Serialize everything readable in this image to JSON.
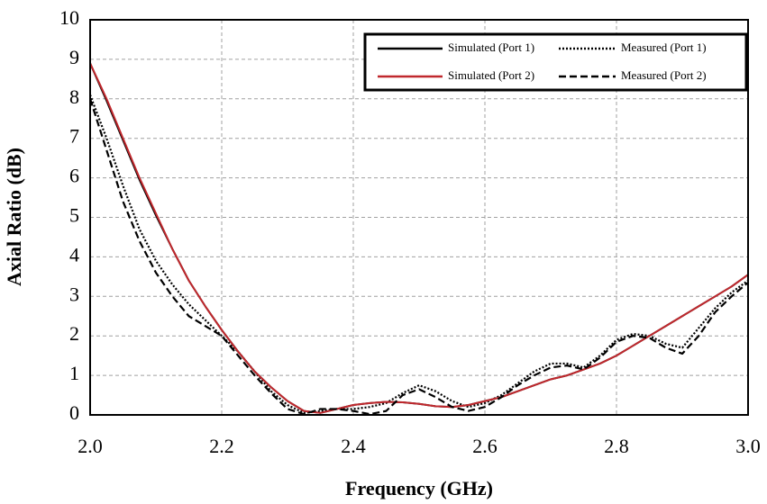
{
  "chart_data": {
    "type": "line",
    "x_label": "Frequency (GHz)",
    "y_label": "Axial Ratio (dB)",
    "x": [
      2.0,
      2.025,
      2.05,
      2.075,
      2.1,
      2.125,
      2.15,
      2.175,
      2.2,
      2.225,
      2.25,
      2.275,
      2.3,
      2.325,
      2.35,
      2.375,
      2.4,
      2.425,
      2.45,
      2.475,
      2.5,
      2.525,
      2.55,
      2.575,
      2.6,
      2.625,
      2.65,
      2.675,
      2.7,
      2.725,
      2.75,
      2.775,
      2.8,
      2.825,
      2.85,
      2.875,
      2.9,
      2.925,
      2.95,
      2.975,
      3.0
    ],
    "series": [
      {
        "name": "Simulated (Port 1)",
        "color": "#000000",
        "linestyle": "solid",
        "values": [
          8.9,
          7.95,
          6.95,
          5.95,
          5.05,
          4.2,
          3.4,
          2.75,
          2.15,
          1.6,
          1.1,
          0.7,
          0.35,
          0.1,
          0.05,
          0.15,
          0.25,
          0.3,
          0.33,
          0.32,
          0.28,
          0.22,
          0.2,
          0.25,
          0.35,
          0.45,
          0.6,
          0.75,
          0.9,
          1.0,
          1.15,
          1.3,
          1.5,
          1.75,
          2.0,
          2.25,
          2.5,
          2.75,
          3.0,
          3.25,
          3.55
        ]
      },
      {
        "name": "Measured (Port 1)",
        "color": "#000000",
        "linestyle": "dotted",
        "values": [
          8.1,
          7.0,
          5.8,
          4.7,
          3.9,
          3.3,
          2.8,
          2.4,
          2.0,
          1.6,
          1.1,
          0.6,
          0.25,
          0.05,
          0.1,
          0.15,
          0.15,
          0.2,
          0.3,
          0.55,
          0.75,
          0.6,
          0.35,
          0.2,
          0.3,
          0.5,
          0.8,
          1.1,
          1.3,
          1.3,
          1.2,
          1.5,
          1.9,
          2.05,
          2.0,
          1.8,
          1.7,
          2.2,
          2.7,
          3.1,
          3.4
        ]
      },
      {
        "name": "Simulated (Port 2)",
        "color": "#c0282d",
        "linestyle": "solid",
        "values": [
          8.9,
          8.0,
          7.0,
          6.0,
          5.1,
          4.2,
          3.4,
          2.75,
          2.15,
          1.6,
          1.1,
          0.7,
          0.35,
          0.1,
          0.05,
          0.15,
          0.25,
          0.3,
          0.33,
          0.32,
          0.28,
          0.22,
          0.2,
          0.25,
          0.35,
          0.45,
          0.6,
          0.75,
          0.9,
          1.0,
          1.15,
          1.3,
          1.5,
          1.75,
          2.0,
          2.25,
          2.5,
          2.75,
          3.0,
          3.25,
          3.55
        ]
      },
      {
        "name": "Measured (Port 2)",
        "color": "#000000",
        "linestyle": "dashed",
        "values": [
          8.0,
          6.7,
          5.4,
          4.4,
          3.6,
          3.0,
          2.5,
          2.25,
          2.0,
          1.5,
          1.0,
          0.55,
          0.15,
          0.02,
          0.15,
          0.15,
          0.1,
          0.02,
          0.1,
          0.5,
          0.65,
          0.45,
          0.2,
          0.1,
          0.2,
          0.45,
          0.75,
          1.0,
          1.2,
          1.25,
          1.15,
          1.45,
          1.85,
          2.0,
          1.95,
          1.7,
          1.55,
          2.0,
          2.6,
          3.0,
          3.35
        ]
      }
    ],
    "xlim": [
      2.0,
      3.0
    ],
    "ylim": [
      0,
      10
    ],
    "xticks": [
      {
        "value": 2.0,
        "label": "2.0"
      },
      2.2,
      2.4,
      2.6,
      2.8,
      {
        "value": 3.0,
        "label": "3.0"
      }
    ],
    "yticks": [
      0,
      1,
      2,
      3,
      4,
      5,
      6,
      7,
      8,
      9,
      10
    ],
    "grid": true,
    "legend_position": "upper right"
  }
}
